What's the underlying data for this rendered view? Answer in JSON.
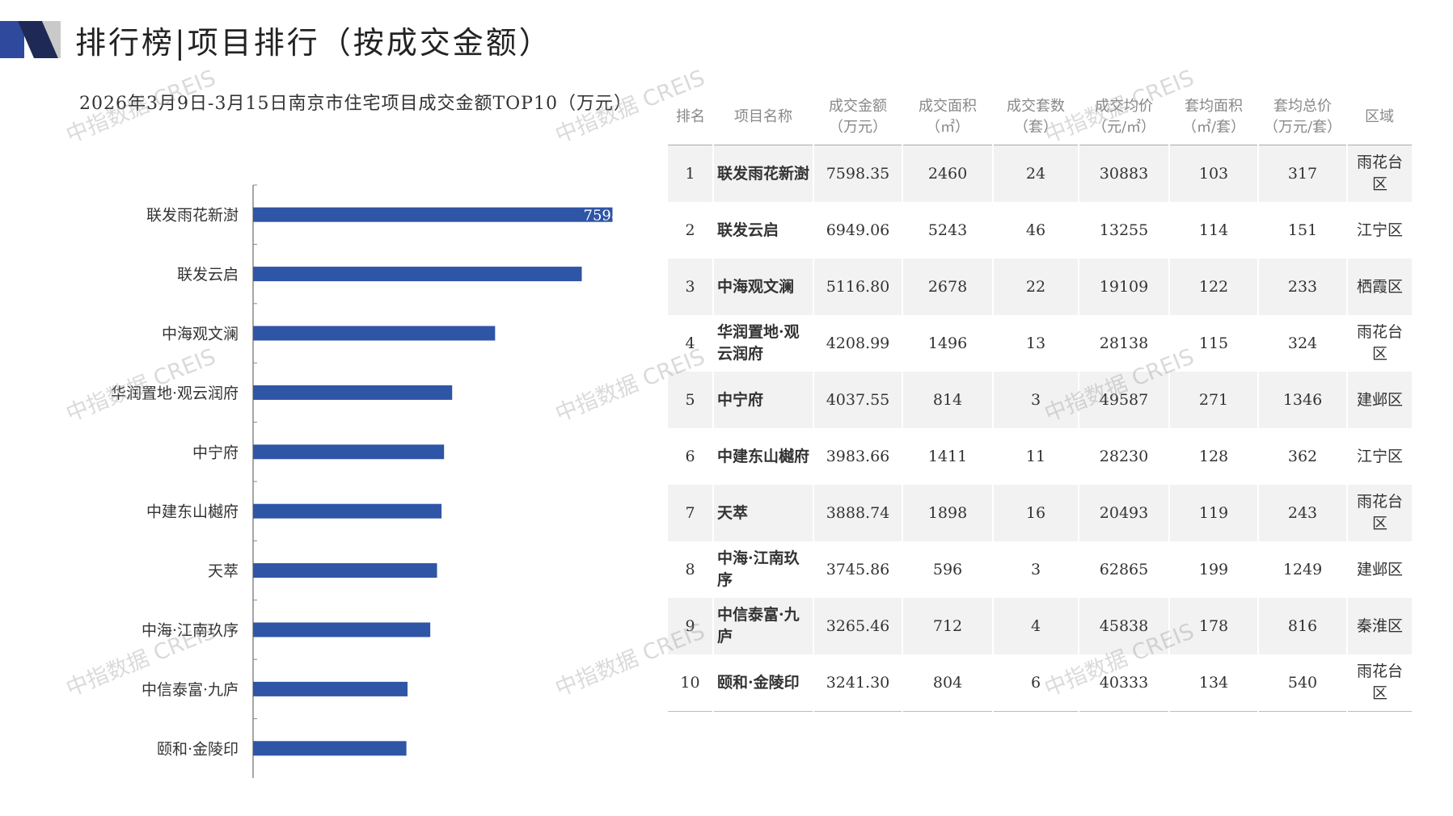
{
  "header": {
    "title": "排行榜|项目排行（按成交金额）"
  },
  "watermark": "中指数据 CREIS",
  "chart_data": {
    "type": "hbar",
    "title": "2026年3月9日-3月15日南京市住宅项目成交金额TOP10（万元）",
    "categories": [
      "联发雨花新澍",
      "联发云启",
      "中海观文澜",
      "华润置地·观云润府",
      "中宁府",
      "中建东山樾府",
      "天萃",
      "中海·江南玖序",
      "中信泰富·九庐",
      "颐和·金陵印"
    ],
    "values": [
      7598.35,
      6949.06,
      5116.8,
      4208.99,
      4037.55,
      3983.66,
      3888.74,
      3745.86,
      3265.46,
      3241.3
    ],
    "color": "#2f55a6",
    "xlim": [
      0,
      8000
    ]
  },
  "table": {
    "headers": [
      "排名",
      "项目名称",
      "成交金额\n（万元）",
      "成交面积\n（㎡）",
      "成交套数\n（套）",
      "成交均价\n（元/㎡）",
      "套均面积\n（㎡/套）",
      "套均总价\n（万元/套）",
      "区域"
    ],
    "rows": [
      [
        "1",
        "联发雨花新澍",
        "7598.35",
        "2460",
        "24",
        "30883",
        "103",
        "317",
        "雨花台区"
      ],
      [
        "2",
        "联发云启",
        "6949.06",
        "5243",
        "46",
        "13255",
        "114",
        "151",
        "江宁区"
      ],
      [
        "3",
        "中海观文澜",
        "5116.80",
        "2678",
        "22",
        "19109",
        "122",
        "233",
        "栖霞区"
      ],
      [
        "4",
        "华润置地·观云润府",
        "4208.99",
        "1496",
        "13",
        "28138",
        "115",
        "324",
        "雨花台区"
      ],
      [
        "5",
        "中宁府",
        "4037.55",
        "814",
        "3",
        "49587",
        "271",
        "1346",
        "建邺区"
      ],
      [
        "6",
        "中建东山樾府",
        "3983.66",
        "1411",
        "11",
        "28230",
        "128",
        "362",
        "江宁区"
      ],
      [
        "7",
        "天萃",
        "3888.74",
        "1898",
        "16",
        "20493",
        "119",
        "243",
        "雨花台区"
      ],
      [
        "8",
        "中海·江南玖序",
        "3745.86",
        "596",
        "3",
        "62865",
        "199",
        "1249",
        "建邺区"
      ],
      [
        "9",
        "中信泰富·九庐",
        "3265.46",
        "712",
        "4",
        "45838",
        "178",
        "816",
        "秦淮区"
      ],
      [
        "10",
        "颐和·金陵印",
        "3241.30",
        "804",
        "6",
        "40333",
        "134",
        "540",
        "雨花台区"
      ]
    ]
  }
}
